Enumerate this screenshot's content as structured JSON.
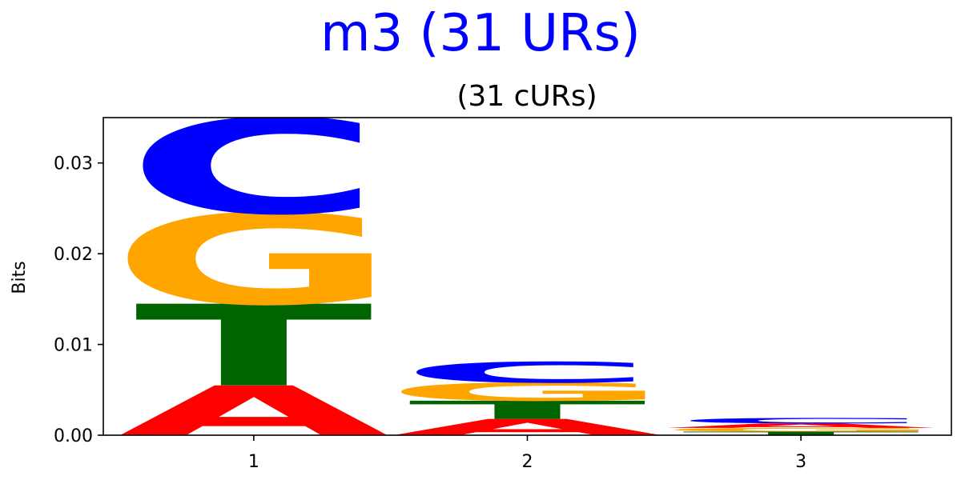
{
  "header": {
    "title": "m3 (31 URs)"
  },
  "chart_data": {
    "type": "sequence-logo",
    "title": "(31 cURs)",
    "xlabel": "",
    "ylabel": "Bits",
    "ylim": [
      0,
      0.035
    ],
    "yticks": [
      "0.00",
      "0.01",
      "0.02",
      "0.03"
    ],
    "categories": [
      "1",
      "2",
      "3"
    ],
    "colors": {
      "A": "#ff0000",
      "C": "#0000ff",
      "G": "#ffa500",
      "T": "#006400"
    },
    "positions": [
      {
        "label": "1",
        "stack": [
          {
            "letter": "A",
            "value": 0.0055
          },
          {
            "letter": "T",
            "value": 0.009
          },
          {
            "letter": "G",
            "value": 0.01
          },
          {
            "letter": "C",
            "value": 0.0105
          }
        ]
      },
      {
        "label": "2",
        "stack": [
          {
            "letter": "A",
            "value": 0.0018
          },
          {
            "letter": "T",
            "value": 0.002
          },
          {
            "letter": "G",
            "value": 0.002
          },
          {
            "letter": "C",
            "value": 0.0023
          }
        ]
      },
      {
        "label": "3",
        "stack": [
          {
            "letter": "T",
            "value": 0.0004
          },
          {
            "letter": "G",
            "value": 0.0004
          },
          {
            "letter": "A",
            "value": 0.0005
          },
          {
            "letter": "C",
            "value": 0.0006
          }
        ]
      }
    ]
  }
}
